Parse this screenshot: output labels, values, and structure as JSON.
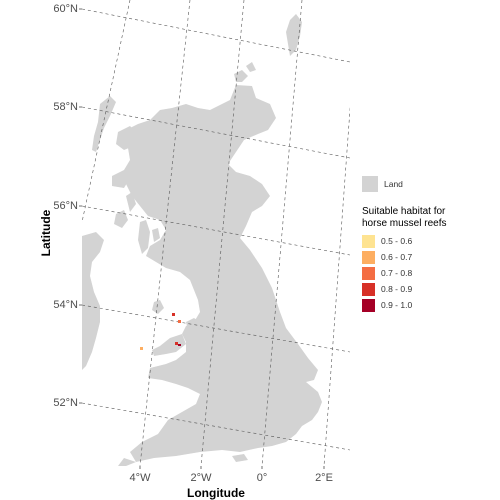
{
  "map": {
    "x_axis_title": "Longitude",
    "y_axis_title": "Latitude",
    "lat_labels": [
      "60°N",
      "58°N",
      "56°N",
      "54°N",
      "52°N"
    ],
    "lon_labels": [
      "4°W",
      "2°W",
      "0°",
      "2°E"
    ],
    "land_color": "#d3d3d3",
    "graticule": "dashed"
  },
  "legend": {
    "land_label": "Land",
    "habitat_title_line1": "Suitable habitat for",
    "habitat_title_line2": "horse mussel reefs",
    "classes": [
      {
        "label": "0.5 - 0.6",
        "color": "#fee391"
      },
      {
        "label": "0.6 - 0.7",
        "color": "#fdae61"
      },
      {
        "label": "0.7 - 0.8",
        "color": "#f46d43"
      },
      {
        "label": "0.8 - 0.9",
        "color": "#d73027"
      },
      {
        "label": "0.9 - 1.0",
        "color": "#a50026"
      }
    ]
  }
}
